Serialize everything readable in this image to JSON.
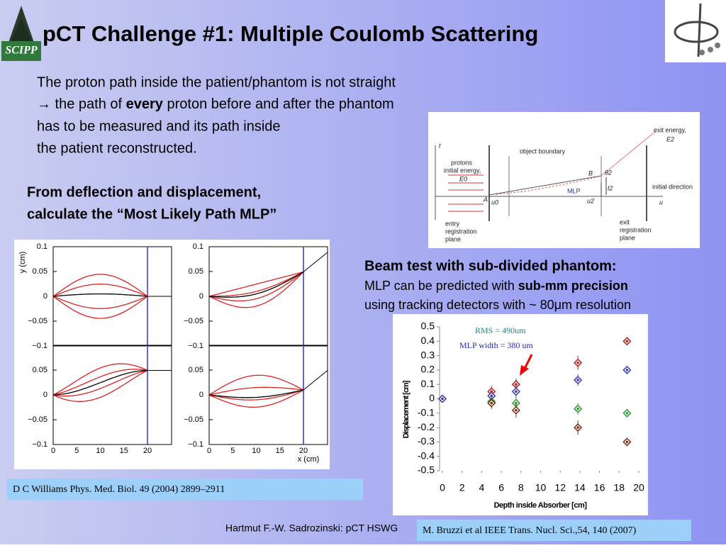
{
  "logo_left": "SCIPP",
  "title": "pCT Challenge #1: Multiple Coulomb Scattering",
  "intro": [
    "The proton path inside the patient/phantom is not straight",
    "→ the path of ",
    "every",
    " proton before and after the phantom",
    "has to be measured and its path inside",
    "the patient reconstructed."
  ],
  "subheading": [
    "From deflection and displacement,",
    "calculate the “Most Likely Path MLP”"
  ],
  "diagram": {
    "t_axis": "t",
    "protons": "protons",
    "initial_energy": "initial energy,",
    "e0": "E0",
    "object_boundary": "object boundary",
    "exit_energy": "exit energy,",
    "e2": "E2",
    "b": "B",
    "theta2": "θ2",
    "t2": "t2",
    "mlp": "MLP",
    "initial_direction": "initial direction",
    "a": "A",
    "u0": "u0",
    "u2": "u2",
    "u_axis": "u",
    "entry": [
      "entry",
      "registration",
      "plane"
    ],
    "exit": [
      "exit",
      "registration",
      "plane"
    ]
  },
  "mcs_plots": {
    "y_label": "y (cm)",
    "x_label": "x (cm)",
    "yticks": [
      "0.1",
      "0.05",
      "0",
      "−0.05",
      "−0.1"
    ],
    "xticks": [
      "0",
      "5",
      "10",
      "15",
      "20"
    ]
  },
  "citation_left": "D C Williams Phys. Med. Biol. 49 (2004) 2899–2911",
  "beam_test": {
    "heading": "Beam test with sub-divided phantom:",
    "line1": [
      "MLP can be predicted with ",
      "sub-mm precision"
    ],
    "line2": "using tracking detectors with ~ 80μm resolution"
  },
  "chart_data": {
    "type": "scatter",
    "x_label": "Depth inside Absorber [cm]",
    "y_label": "Displacement [cm]",
    "annotations": [
      "RMS = 490um",
      "MLP width = 380 um"
    ],
    "xlim": [
      0,
      20
    ],
    "ylim": [
      -0.5,
      0.5
    ],
    "xticks": [
      0,
      2,
      4,
      6,
      8,
      10,
      12,
      14,
      16,
      18,
      20
    ],
    "yticks": [
      0.5,
      0.4,
      0.3,
      0.2,
      0.1,
      0,
      -0.1,
      -0.2,
      -0.3,
      -0.4,
      -0.5
    ],
    "series": [
      {
        "color": "#4a2a9a",
        "x": [
          0
        ],
        "values": [
          0
        ],
        "errors": [
          0
        ]
      },
      {
        "color": "#b02020",
        "x": [
          5,
          7.5,
          13.8,
          18.8
        ],
        "values": [
          0.05,
          0.1,
          0.25,
          0.4
        ],
        "errors": [
          0.04,
          0.04,
          0.05,
          0
        ]
      },
      {
        "color": "#3a3ab0",
        "x": [
          5,
          7.5,
          13.8,
          18.8
        ],
        "values": [
          0.02,
          0.05,
          0.13,
          0.2
        ],
        "errors": [
          0.03,
          0.04,
          0.04,
          0
        ]
      },
      {
        "color": "#2f9a3a",
        "x": [
          5,
          7.5,
          13.8,
          18.8
        ],
        "values": [
          -0.02,
          -0.03,
          -0.07,
          -0.1
        ],
        "errors": [
          0.03,
          0.04,
          0.04,
          0
        ]
      },
      {
        "color": "#7a2a10",
        "x": [
          5,
          7.5,
          13.8,
          18.8
        ],
        "values": [
          -0.03,
          -0.08,
          -0.2,
          -0.3
        ],
        "errors": [
          0.04,
          0.05,
          0.05,
          0
        ]
      }
    ]
  },
  "footer": "Hartmut F.-W. Sadrozinski: pCT HSWG",
  "citation_right": "M. Bruzzi et al IEEE Trans. Nucl. Sci.,54, 140 (2007)"
}
